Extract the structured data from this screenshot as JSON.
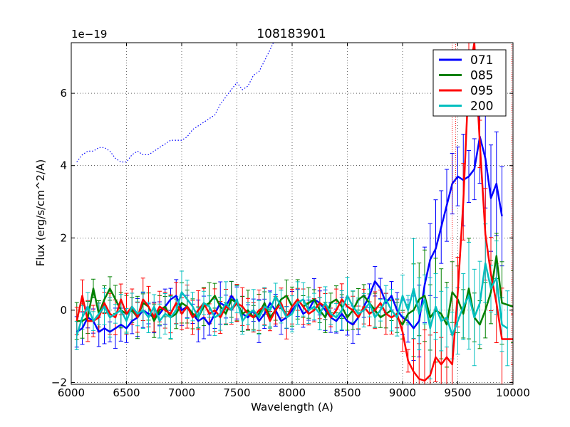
{
  "chart_data": {
    "type": "line",
    "title": "108183901",
    "xlabel": "Wavelength (A)",
    "ylabel": "Flux (erg/s/cm^2/A)",
    "y_offset_text": "1e−19",
    "xlim": [
      6000,
      10000
    ],
    "ylim": [
      -2.05,
      7.4
    ],
    "x_ticks": [
      6000,
      6500,
      7000,
      7500,
      8000,
      8500,
      9000,
      9500,
      10000
    ],
    "y_ticks": [
      -2,
      0,
      2,
      4,
      6
    ],
    "grid": true,
    "legend_position": "top-right",
    "series": [
      {
        "name": "071",
        "color": "#0000ff",
        "x": [
          6050,
          6100,
          6150,
          6200,
          6250,
          6300,
          6350,
          6400,
          6450,
          6500,
          6550,
          6600,
          6650,
          6700,
          6750,
          6800,
          6850,
          6900,
          6950,
          7000,
          7050,
          7100,
          7150,
          7200,
          7250,
          7300,
          7350,
          7400,
          7450,
          7500,
          7550,
          7600,
          7650,
          7700,
          7750,
          7800,
          7850,
          7900,
          7950,
          8000,
          8050,
          8100,
          8150,
          8200,
          8250,
          8300,
          8350,
          8400,
          8450,
          8500,
          8550,
          8600,
          8650,
          8700,
          8750,
          8800,
          8850,
          8900,
          8950,
          9000,
          9050,
          9100,
          9150,
          9200,
          9250,
          9300,
          9350,
          9400,
          9450,
          9500,
          9550,
          9600,
          9650,
          9700,
          9750,
          9800,
          9850,
          9900
        ],
        "y": [
          -0.6,
          -0.5,
          -0.2,
          -0.3,
          -0.6,
          -0.5,
          -0.6,
          -0.5,
          -0.4,
          -0.5,
          -0.3,
          -0.2,
          0.0,
          -0.1,
          -0.2,
          -0.1,
          0.1,
          0.3,
          0.4,
          0.0,
          0.1,
          -0.1,
          -0.3,
          -0.2,
          -0.4,
          -0.1,
          0.2,
          0.1,
          0.4,
          0.2,
          -0.1,
          -0.2,
          0.0,
          -0.3,
          -0.1,
          0.2,
          0.0,
          -0.3,
          -0.2,
          0.0,
          0.2,
          -0.1,
          0.0,
          0.3,
          0.2,
          0.0,
          -0.2,
          -0.3,
          -0.1,
          -0.3,
          -0.4,
          -0.2,
          0.1,
          0.4,
          0.8,
          0.6,
          0.2,
          0.4,
          0.0,
          -0.2,
          -0.3,
          -0.5,
          -0.3,
          0.7,
          1.4,
          1.7,
          2.3,
          2.9,
          3.5,
          3.7,
          3.6,
          3.7,
          3.9,
          4.8,
          4.2,
          3.1,
          3.5,
          2.6
        ]
      },
      {
        "name": "085",
        "color": "#008000",
        "x": [
          6050,
          6100,
          6150,
          6200,
          6250,
          6300,
          6350,
          6400,
          6450,
          6500,
          6550,
          6600,
          6650,
          6700,
          6750,
          6800,
          6850,
          6900,
          6950,
          7000,
          7050,
          7100,
          7150,
          7200,
          7250,
          7300,
          7350,
          7400,
          7450,
          7500,
          7550,
          7600,
          7650,
          7700,
          7750,
          7800,
          7850,
          7900,
          7950,
          8000,
          8050,
          8100,
          8150,
          8200,
          8250,
          8300,
          8350,
          8400,
          8450,
          8500,
          8550,
          8600,
          8650,
          8700,
          8750,
          8800,
          8850,
          8900,
          8950,
          9000,
          9050,
          9100,
          9150,
          9200,
          9250,
          9300,
          9350,
          9400,
          9450,
          9500,
          9550,
          9600,
          9650,
          9700,
          9750,
          9800,
          9850,
          9900,
          10000
        ],
        "y": [
          -0.3,
          -0.3,
          -0.2,
          0.6,
          -0.1,
          0.3,
          0.6,
          0.3,
          0.0,
          -0.1,
          0.0,
          -0.2,
          0.2,
          0.1,
          -0.3,
          0.0,
          0.1,
          -0.2,
          -0.1,
          0.2,
          0.1,
          -0.1,
          -0.2,
          0.1,
          0.2,
          0.4,
          0.1,
          -0.1,
          0.3,
          0.2,
          -0.1,
          0.0,
          -0.2,
          -0.1,
          0.2,
          -0.2,
          0.0,
          0.3,
          0.4,
          0.1,
          0.3,
          0.1,
          0.2,
          0.3,
          0.0,
          -0.2,
          0.2,
          0.3,
          0.1,
          -0.2,
          0.0,
          0.3,
          0.4,
          0.2,
          0.0,
          -0.2,
          -0.1,
          0.0,
          -0.2,
          -0.4,
          -0.1,
          0.0,
          0.3,
          0.4,
          -0.2,
          0.0,
          -0.1,
          -0.4,
          0.5,
          0.3,
          -0.1,
          0.6,
          -0.2,
          -0.4,
          0.0,
          0.5,
          1.5,
          0.2,
          0.1
        ]
      },
      {
        "name": "095",
        "color": "#ff0000",
        "x": [
          6050,
          6100,
          6150,
          6200,
          6250,
          6300,
          6350,
          6400,
          6450,
          6500,
          6550,
          6600,
          6650,
          6700,
          6750,
          6800,
          6850,
          6900,
          6950,
          7000,
          7050,
          7100,
          7150,
          7200,
          7250,
          7300,
          7350,
          7400,
          7450,
          7500,
          7550,
          7600,
          7650,
          7700,
          7750,
          7800,
          7850,
          7900,
          7950,
          8000,
          8050,
          8100,
          8150,
          8200,
          8250,
          8300,
          8350,
          8400,
          8450,
          8500,
          8550,
          8600,
          8650,
          8700,
          8750,
          8800,
          8850,
          8900,
          8950,
          9000,
          9050,
          9100,
          9150,
          9200,
          9250,
          9300,
          9350,
          9400,
          9450,
          9500,
          9550,
          9600,
          9650,
          9700,
          9750,
          9800,
          9850,
          9900,
          10000
        ],
        "y": [
          -0.3,
          0.4,
          -0.3,
          -0.3,
          -0.2,
          0.2,
          -0.1,
          -0.2,
          0.3,
          -0.1,
          0.1,
          -0.2,
          0.3,
          0.1,
          -0.2,
          0.1,
          0.0,
          -0.1,
          0.2,
          -0.1,
          0.1,
          -0.2,
          0.0,
          0.2,
          -0.1,
          0.0,
          -0.2,
          0.1,
          0.0,
          0.2,
          0.1,
          -0.1,
          -0.2,
          0.0,
          0.1,
          -0.3,
          0.0,
          0.2,
          -0.2,
          0.1,
          0.3,
          0.1,
          -0.1,
          0.0,
          0.2,
          0.1,
          -0.2,
          0.0,
          0.3,
          0.1,
          0.0,
          -0.2,
          0.1,
          -0.1,
          0.0,
          0.2,
          -0.1,
          -0.2,
          -0.1,
          -0.6,
          -1.4,
          -1.7,
          -1.9,
          -1.95,
          -1.8,
          -1.3,
          -1.5,
          -1.3,
          -1.5,
          0.5,
          3.0,
          6.5,
          7.4,
          4.6,
          2.1,
          1.0,
          0.2,
          -0.8,
          -0.8
        ]
      },
      {
        "name": "200",
        "color": "#00bfbf",
        "x": [
          6050,
          6100,
          6150,
          6200,
          6250,
          6300,
          6350,
          6400,
          6450,
          6500,
          6550,
          6600,
          6650,
          6700,
          6750,
          6800,
          6850,
          6900,
          6950,
          7000,
          7050,
          7100,
          7150,
          7200,
          7250,
          7300,
          7350,
          7400,
          7450,
          7500,
          7550,
          7600,
          7650,
          7700,
          7750,
          7800,
          7850,
          7900,
          7950,
          8000,
          8050,
          8100,
          8150,
          8200,
          8250,
          8300,
          8350,
          8400,
          8450,
          8500,
          8550,
          8600,
          8650,
          8700,
          8750,
          8800,
          8850,
          8900,
          8950,
          9000,
          9050,
          9100,
          9150,
          9200,
          9250,
          9300,
          9350,
          9400,
          9450,
          9500,
          9550,
          9600,
          9650,
          9700,
          9750,
          9800,
          9850,
          9900,
          9950
        ],
        "y": [
          -0.7,
          -0.2,
          0.1,
          -0.3,
          -0.1,
          0.1,
          -0.2,
          -0.1,
          0.0,
          -0.3,
          0.1,
          -0.1,
          0.0,
          -0.2,
          0.1,
          -0.3,
          -0.1,
          -0.2,
          0.0,
          0.5,
          0.3,
          0.1,
          -0.2,
          0.2,
          0.1,
          -0.2,
          -0.1,
          0.2,
          0.0,
          0.3,
          -0.3,
          -0.1,
          0.0,
          -0.2,
          0.1,
          0.0,
          0.4,
          0.1,
          -0.2,
          -0.1,
          0.2,
          0.3,
          0.0,
          0.1,
          -0.1,
          0.2,
          -0.1,
          -0.2,
          0.0,
          0.4,
          0.1,
          -0.1,
          0.0,
          0.2,
          -0.2,
          0.0,
          0.3,
          0.0,
          -0.2,
          0.4,
          0.0,
          0.6,
          -0.1,
          0.3,
          -0.5,
          0.1,
          -0.3,
          -0.2,
          -0.7,
          -0.3,
          0.1,
          0.4,
          -0.2,
          0.2,
          1.3,
          0.6,
          0.9,
          -0.4,
          -0.5
        ]
      }
    ],
    "extra_lines": [
      {
        "name": "dotted-template",
        "color": "#0000ff",
        "style": "dotted",
        "x": [
          6050,
          6100,
          6150,
          6200,
          6250,
          6300,
          6350,
          6400,
          6450,
          6500,
          6550,
          6600,
          6650,
          6700,
          6750,
          6800,
          6850,
          6900,
          6950,
          7000,
          7050,
          7100,
          7150,
          7200,
          7250,
          7300,
          7350,
          7400,
          7450,
          7500,
          7550,
          7600,
          7650,
          7700,
          7750,
          7800,
          7830
        ],
        "y": [
          4.1,
          4.3,
          4.4,
          4.4,
          4.5,
          4.5,
          4.4,
          4.2,
          4.1,
          4.1,
          4.3,
          4.4,
          4.3,
          4.3,
          4.4,
          4.5,
          4.6,
          4.7,
          4.7,
          4.7,
          4.8,
          5.0,
          5.1,
          5.2,
          5.3,
          5.4,
          5.7,
          5.9,
          6.1,
          6.3,
          6.1,
          6.2,
          6.5,
          6.6,
          6.9,
          7.2,
          7.4
        ]
      }
    ],
    "vlines": [
      {
        "x": 9450,
        "color": "#ff0000",
        "y0": 0,
        "y1": 7.4
      },
      {
        "x": 9480,
        "color": "#ff0000",
        "y0": 3.5,
        "y1": 7.4
      },
      {
        "x": 9990,
        "color": "#ff0000",
        "y0": -2.05,
        "y1": 7.4
      }
    ]
  }
}
